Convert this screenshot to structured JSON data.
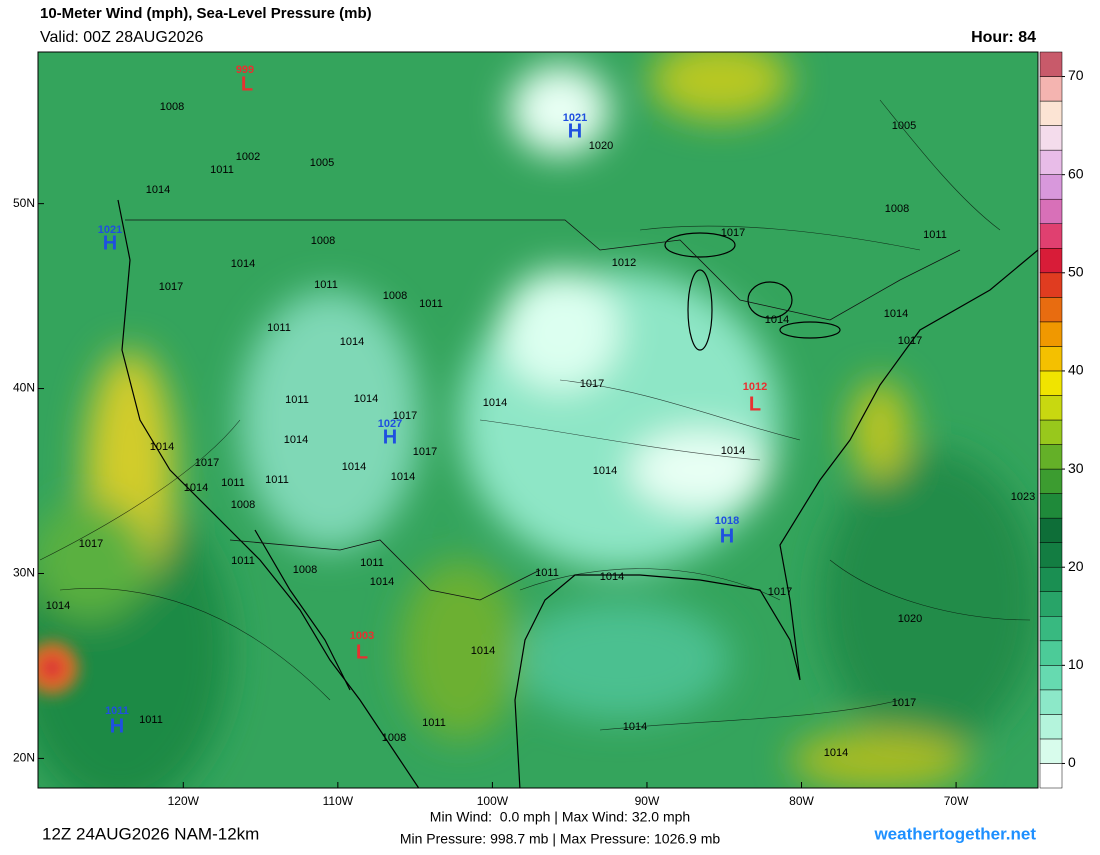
{
  "title": "10-Meter Wind (mph), Sea-Level Pressure (mb)",
  "valid": "Valid: 00Z 28AUG2026",
  "hour": "Hour: 84",
  "map": {
    "xlim": [
      -129.4,
      -64.7
    ],
    "ylim": [
      18.4,
      58.2
    ],
    "xticks": [
      {
        "value": -120,
        "label": "120W"
      },
      {
        "value": -110,
        "label": "110W"
      },
      {
        "value": -100,
        "label": "100W"
      },
      {
        "value": -90,
        "label": "90W"
      },
      {
        "value": -80,
        "label": "80W"
      },
      {
        "value": -70,
        "label": "70W"
      }
    ],
    "yticks": [
      {
        "value": 20,
        "label": "20N"
      },
      {
        "value": 30,
        "label": "30N"
      },
      {
        "value": 40,
        "label": "40N"
      },
      {
        "value": 50,
        "label": "50N"
      }
    ]
  },
  "colorbar": {
    "lim": [
      -2.5,
      72.5
    ],
    "ticks": [
      0,
      10,
      20,
      30,
      40,
      50,
      60,
      70
    ],
    "colors": [
      "#ffffff",
      "#d8fcec",
      "#b4f4dc",
      "#8ce8c8",
      "#66dab0",
      "#4ccb98",
      "#38b980",
      "#28a468",
      "#1a8f52",
      "#137d42",
      "#0e6e38",
      "#1f8a3a",
      "#3c9c30",
      "#64b028",
      "#98c81c",
      "#c8d810",
      "#f0e400",
      "#f4c000",
      "#f09800",
      "#e86c10",
      "#e03c20",
      "#d81c38",
      "#e04070",
      "#d870b8",
      "#d898dc",
      "#e8bce8",
      "#f4dcec",
      "#fce4d4",
      "#f4b4b0",
      "#c85a6a"
    ]
  },
  "pressure_centers": [
    {
      "type": "L",
      "value": 999
    },
    {
      "type": "H",
      "value": 1021
    },
    {
      "type": "H",
      "value": 1021
    },
    {
      "type": "H",
      "value": 1027
    },
    {
      "type": "L",
      "value": 1012
    },
    {
      "type": "H",
      "value": 1018
    },
    {
      "type": "L",
      "value": 1003
    },
    {
      "type": "H",
      "value": 1011
    }
  ],
  "isobar_labels": [
    1008,
    1002,
    1005,
    1011,
    1014,
    1008,
    1014,
    1017,
    1011,
    1008,
    1011,
    1011,
    1014,
    1012,
    1017,
    1005,
    1008,
    1011,
    1014,
    1014,
    1017,
    1017,
    1014,
    1011,
    1014,
    1017,
    1017,
    1014,
    1014,
    1017,
    1011,
    1011,
    1014,
    1014,
    1014,
    1008,
    1014,
    1014,
    1023,
    1017,
    1011,
    1008,
    1011,
    1014,
    1011,
    1014,
    1017,
    1020,
    1014,
    1014,
    1011,
    1011,
    1008,
    1014,
    1017,
    1014,
    1020
  ],
  "footer": {
    "run": "12Z 24AUG2026 NAM-12km",
    "wind": "Min Wind:  0.0 mph | Max Wind: 32.0 mph",
    "pressure": "Min Pressure: 998.7 mb | Max Pressure: 1026.9 mb",
    "site": "weathertogether.net"
  }
}
